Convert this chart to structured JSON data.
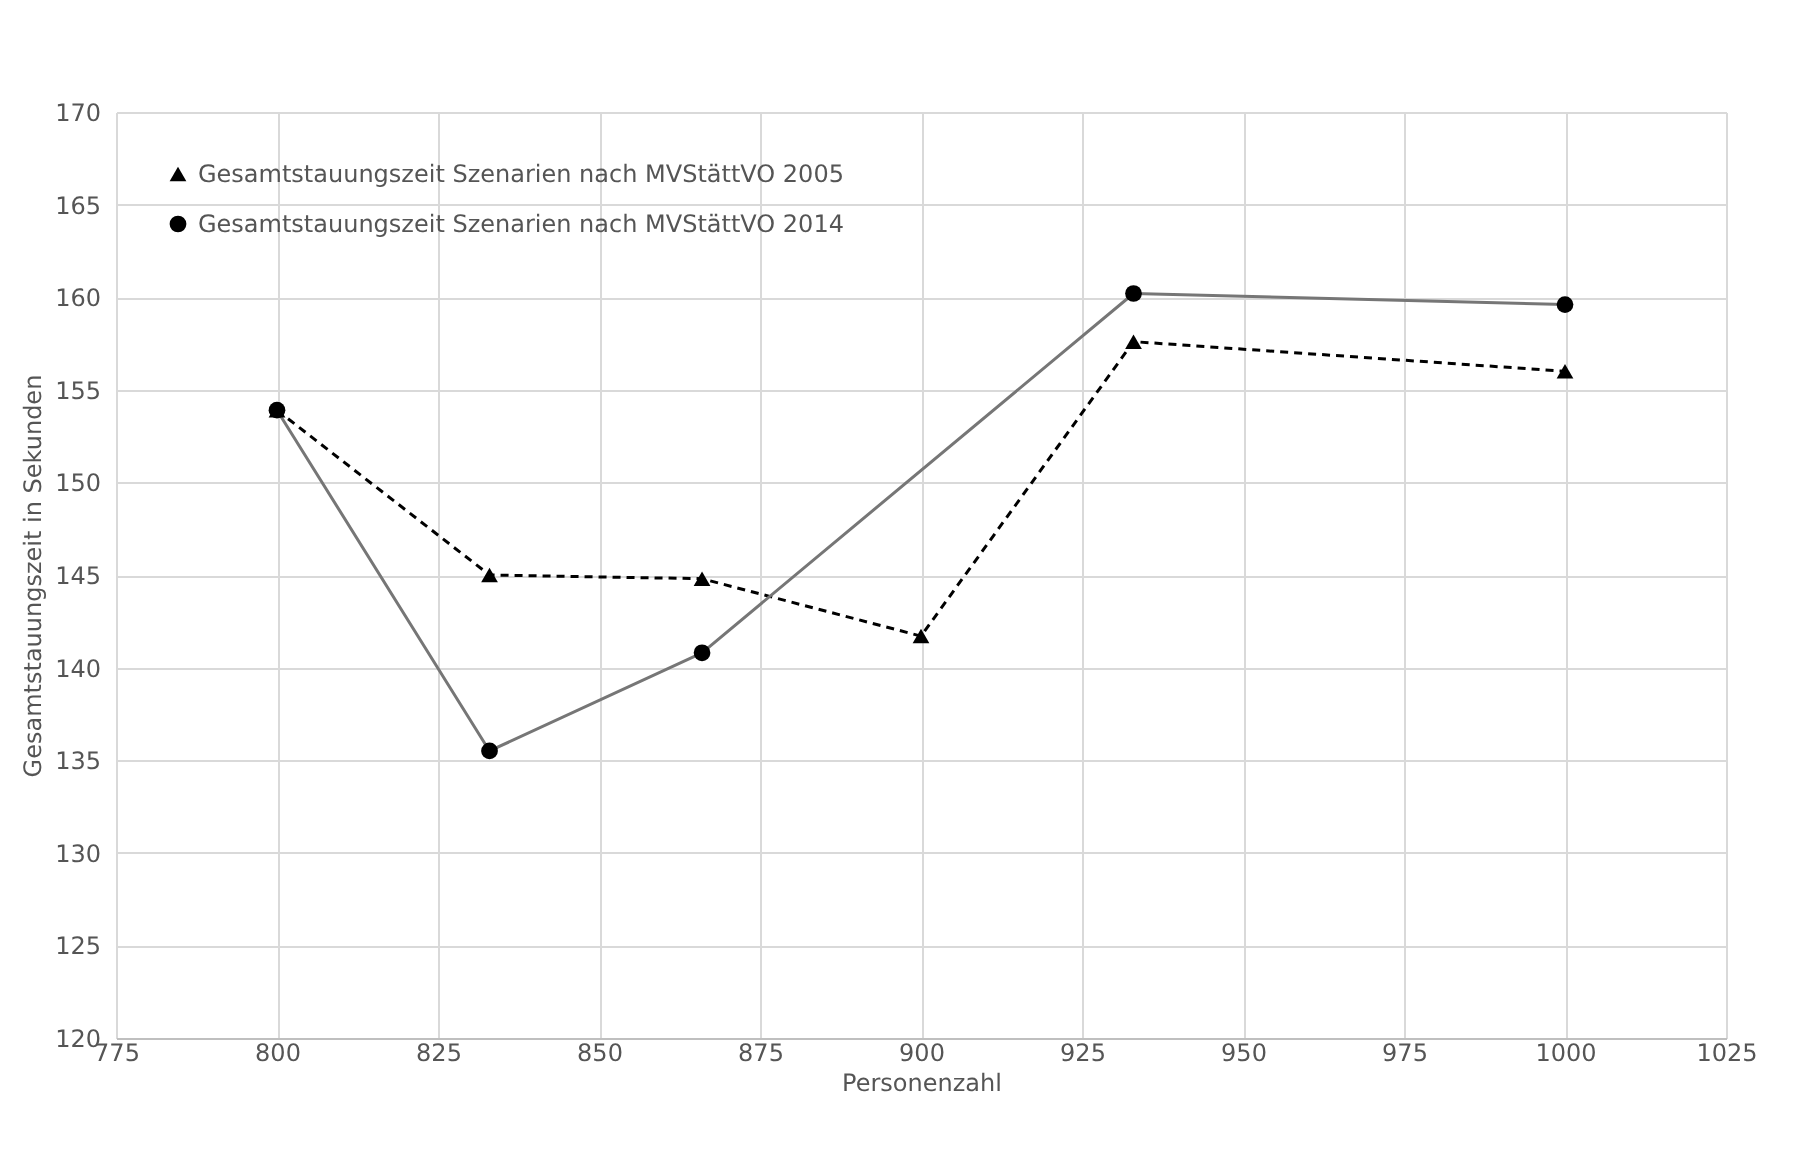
{
  "chart_data": {
    "type": "line",
    "xlabel": "Personenzahl",
    "ylabel": "Gesamtstauungszeit in Sekunden",
    "x": [
      800,
      833,
      866,
      900,
      933,
      1000
    ],
    "series": [
      {
        "name": "Gesamtstauungszeit Szenarien nach MVStättVO 2005",
        "color": "#000000",
        "marker": "triangle",
        "line_style": "dashed",
        "values": [
          153.9,
          145.0,
          144.8,
          141.7,
          157.6,
          156.0
        ]
      },
      {
        "name": "Gesamtstauungszeit Szenarien nach MVStättVO 2014",
        "color": "#767676",
        "marker": "circle",
        "line_style": "solid",
        "x": [
          800,
          833,
          866,
          933,
          1000
        ],
        "values": [
          153.9,
          135.5,
          140.8,
          160.2,
          159.6
        ]
      }
    ],
    "xlim": [
      775,
      1025
    ],
    "xticks": [
      775,
      800,
      825,
      850,
      875,
      900,
      925,
      950,
      975,
      1000,
      1025
    ],
    "ylim": [
      120,
      170
    ],
    "yticks": [
      120,
      125,
      130,
      135,
      140,
      145,
      150,
      155,
      160,
      165,
      170
    ],
    "grid": true,
    "legend": "top left"
  }
}
